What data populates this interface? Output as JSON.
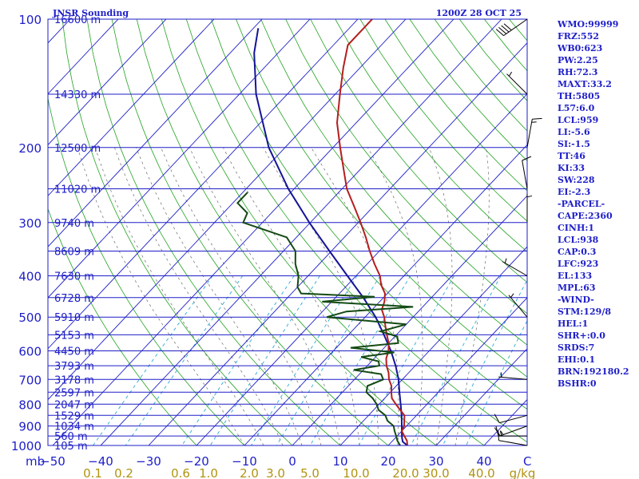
{
  "chart_data": {
    "type": "skew-t",
    "title": "JNSR Sounding",
    "valid_time": "1200Z 28 OCT 25",
    "units": {
      "pressure": "mb",
      "temperature": "C",
      "mixing_ratio": "g/kg"
    },
    "pressure_levels": [
      100,
      200,
      300,
      400,
      500,
      600,
      700,
      800,
      900,
      1000
    ],
    "pressure_unit_label": "mb",
    "temperature_ticks": [
      -50,
      -40,
      -30,
      -20,
      -10,
      0,
      10,
      20,
      30,
      40
    ],
    "temperature_unit_label": "C",
    "mixing_ratio_labels": [
      "0.1",
      "0.2",
      "0.6",
      "1.0",
      "2.0",
      "3.0",
      "5.0",
      "10.0",
      "20.0",
      "30.0",
      "40.0",
      "g/kg"
    ],
    "height_labels": [
      {
        "p": 100,
        "text": "16600 m"
      },
      {
        "p": 150,
        "text": "14330 m"
      },
      {
        "p": 200,
        "text": "12500 m"
      },
      {
        "p": 250,
        "text": "11020 m"
      },
      {
        "p": 300,
        "text": "9740 m"
      },
      {
        "p": 350,
        "text": "8609 m"
      },
      {
        "p": 400,
        "text": "7630 m"
      },
      {
        "p": 450,
        "text": "6728 m"
      },
      {
        "p": 500,
        "text": "5910 m"
      },
      {
        "p": 550,
        "text": "5153 m"
      },
      {
        "p": 600,
        "text": "4450 m"
      },
      {
        "p": 650,
        "text": "3793 m"
      },
      {
        "p": 700,
        "text": "3178 m"
      },
      {
        "p": 750,
        "text": "2597 m"
      },
      {
        "p": 800,
        "text": "2047 m"
      },
      {
        "p": 850,
        "text": "1529 m"
      },
      {
        "p": 900,
        "text": "1034 m"
      },
      {
        "p": 950,
        "text": "560 m"
      },
      {
        "p": 1000,
        "text": "105 m"
      }
    ],
    "temperature_profile": [
      [
        1000,
        24
      ],
      [
        975,
        23
      ],
      [
        950,
        21.5
      ],
      [
        925,
        20
      ],
      [
        900,
        19.5
      ],
      [
        875,
        18.5
      ],
      [
        850,
        17.5
      ],
      [
        825,
        15.5
      ],
      [
        800,
        13.5
      ],
      [
        775,
        11.5
      ],
      [
        750,
        10.2
      ],
      [
        725,
        9
      ],
      [
        700,
        7.2
      ],
      [
        675,
        5.8
      ],
      [
        650,
        4
      ],
      [
        625,
        2.5
      ],
      [
        600,
        1.5
      ],
      [
        575,
        0
      ],
      [
        550,
        -2
      ],
      [
        525,
        -4
      ],
      [
        500,
        -6
      ],
      [
        480,
        -8
      ],
      [
        460,
        -9
      ],
      [
        440,
        -10.5
      ],
      [
        420,
        -13
      ],
      [
        400,
        -15
      ],
      [
        375,
        -18.5
      ],
      [
        350,
        -22
      ],
      [
        325,
        -25.5
      ],
      [
        300,
        -29.5
      ],
      [
        275,
        -34
      ],
      [
        250,
        -39
      ],
      [
        225,
        -43.5
      ],
      [
        200,
        -48.5
      ],
      [
        175,
        -54
      ],
      [
        150,
        -59
      ],
      [
        130,
        -63.5
      ],
      [
        115,
        -67
      ],
      [
        100,
        -67
      ]
    ],
    "dewpoint_profile": [
      [
        1000,
        22.5
      ],
      [
        975,
        21
      ],
      [
        950,
        19.8
      ],
      [
        925,
        18.5
      ],
      [
        900,
        17.3
      ],
      [
        875,
        15
      ],
      [
        850,
        13.5
      ],
      [
        825,
        11
      ],
      [
        800,
        9.5
      ],
      [
        775,
        7.5
      ],
      [
        750,
        5
      ],
      [
        725,
        4
      ],
      [
        700,
        6
      ],
      [
        680,
        4.5
      ],
      [
        665,
        -2
      ],
      [
        650,
        2.5
      ],
      [
        635,
        1.5
      ],
      [
        620,
        -3
      ],
      [
        605,
        3
      ],
      [
        590,
        -7
      ],
      [
        575,
        2
      ],
      [
        555,
        0.5
      ],
      [
        540,
        -4
      ],
      [
        520,
        0
      ],
      [
        500,
        -18
      ],
      [
        485,
        -15
      ],
      [
        473,
        -2
      ],
      [
        460,
        -22
      ],
      [
        448,
        -12
      ],
      [
        440,
        -28
      ],
      [
        425,
        -30
      ],
      [
        400,
        -32
      ],
      [
        375,
        -35
      ],
      [
        350,
        -37.5
      ],
      [
        325,
        -42
      ],
      [
        300,
        -54
      ],
      [
        285,
        -55
      ],
      [
        270,
        -59
      ],
      [
        255,
        -59
      ]
    ],
    "parcel_profile": [
      [
        1000,
        24
      ],
      [
        980,
        22.3
      ],
      [
        960,
        21.4
      ],
      [
        940,
        20.6
      ],
      [
        920,
        19.8
      ],
      [
        900,
        19
      ],
      [
        850,
        16.9
      ],
      [
        800,
        14.5
      ],
      [
        750,
        11.9
      ],
      [
        700,
        9.2
      ],
      [
        650,
        5.9
      ],
      [
        600,
        2
      ],
      [
        550,
        -2.6
      ],
      [
        500,
        -7.8
      ],
      [
        450,
        -14.2
      ],
      [
        400,
        -21.8
      ],
      [
        350,
        -30.4
      ],
      [
        300,
        -40.2
      ],
      [
        250,
        -51.2
      ],
      [
        200,
        -63.4
      ],
      [
        150,
        -76.5
      ],
      [
        120,
        -85
      ],
      [
        105,
        -89
      ]
    ],
    "wind_barbs": [
      {
        "p": 1000,
        "dir": 280,
        "spd": 10
      },
      {
        "p": 950,
        "dir": 270,
        "spd": 15
      },
      {
        "p": 900,
        "dir": 250,
        "spd": 15
      },
      {
        "p": 850,
        "dir": 255,
        "spd": 10
      },
      {
        "p": 700,
        "dir": 275,
        "spd": 5
      },
      {
        "p": 500,
        "dir": 320,
        "spd": 5
      },
      {
        "p": 400,
        "dir": 300,
        "spd": 5
      },
      {
        "p": 300,
        "dir": 0,
        "spd": 5
      },
      {
        "p": 250,
        "dir": 350,
        "spd": 10
      },
      {
        "p": 200,
        "dir": 10,
        "spd": 15
      },
      {
        "p": 150,
        "dir": 315,
        "spd": 5
      },
      {
        "p": 100,
        "dir": 235,
        "spd": 40
      }
    ],
    "indices": [
      "WMO:99999",
      "FRZ:552",
      "WB0:623",
      "PW:2.25",
      "RH:72.3",
      "MAXT:33.2",
      "TH:5805",
      "L57:6.0",
      "LCL:959",
      "LI:-5.6",
      "SI:-1.5",
      "TT:46",
      "KI:33",
      "SW:228",
      "EI:-2.3",
      "-PARCEL-",
      "CAPE:2360",
      "CINH:1",
      "LCL:938",
      "CAP:0.3",
      "LFC:923",
      "EL:133",
      "MPL:63",
      "-WIND-",
      "STM:129/8",
      "HEL:1",
      "SHR+:0.0",
      "SRDS:7",
      "EHI:0.1",
      "BRN:192180.2",
      "BSHR:0"
    ],
    "colors": {
      "background": "#ffffff",
      "isobar": "#1e1ec8",
      "isotherm": "#1e1ec8",
      "dry_adiabat": "#22a322",
      "moist_adiabat": "#6a6a6a",
      "mixing_ratio": "#2aa8d8",
      "temperature": "#b41e1e",
      "dewpoint": "#144a14",
      "parcel": "#141496",
      "axis_label": "#1e1ec8",
      "mixing_label": "#b09410"
    }
  }
}
